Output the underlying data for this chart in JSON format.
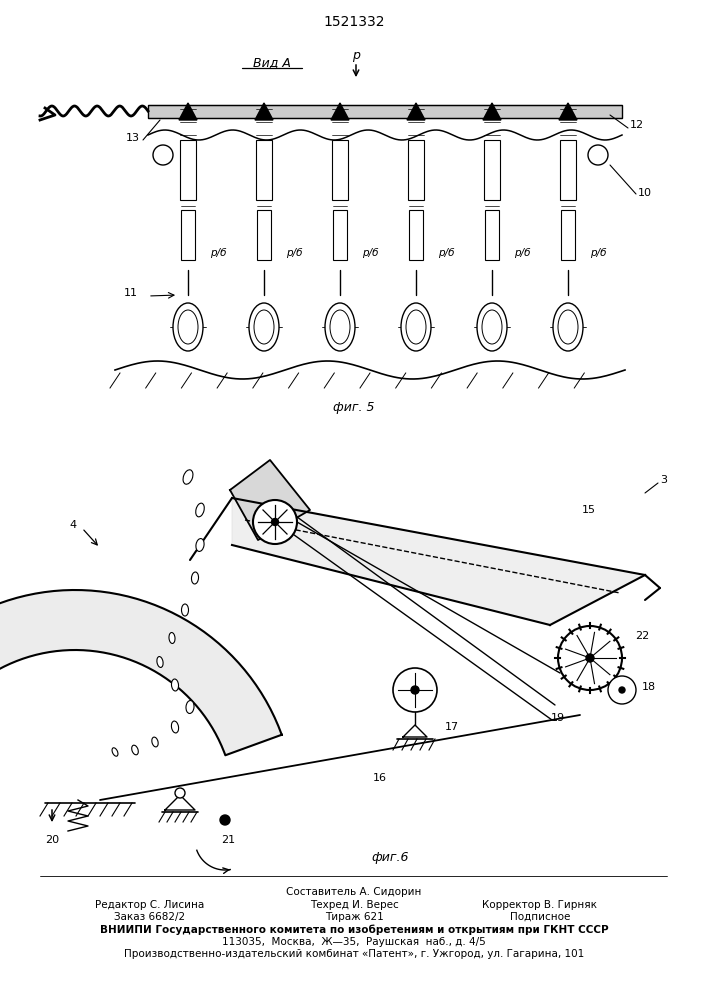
{
  "patent_number": "1521332",
  "bg_color": "#ffffff",
  "footer_lines_col1": [
    "Редактор С. Лисина",
    "Заказ 6682/2"
  ],
  "footer_lines_col2": [
    "Составитель А. Сидорин",
    "Техред И. Верес",
    "Тираж 621"
  ],
  "footer_lines_col3": [
    "Корректор В. Гирняк",
    "Подписное"
  ],
  "footer_bold": "ВНИИПИ Государственного комитета по изобретениям и открытиям при ГКНТ СССР",
  "footer_addr1": "113035,  Москва,  Ж—35,  Раушская  наб., д. 4/5",
  "footer_addr2": "Производственно-издательский комбинат «Патент», г. Ужгород, ул. Гагарина, 101"
}
